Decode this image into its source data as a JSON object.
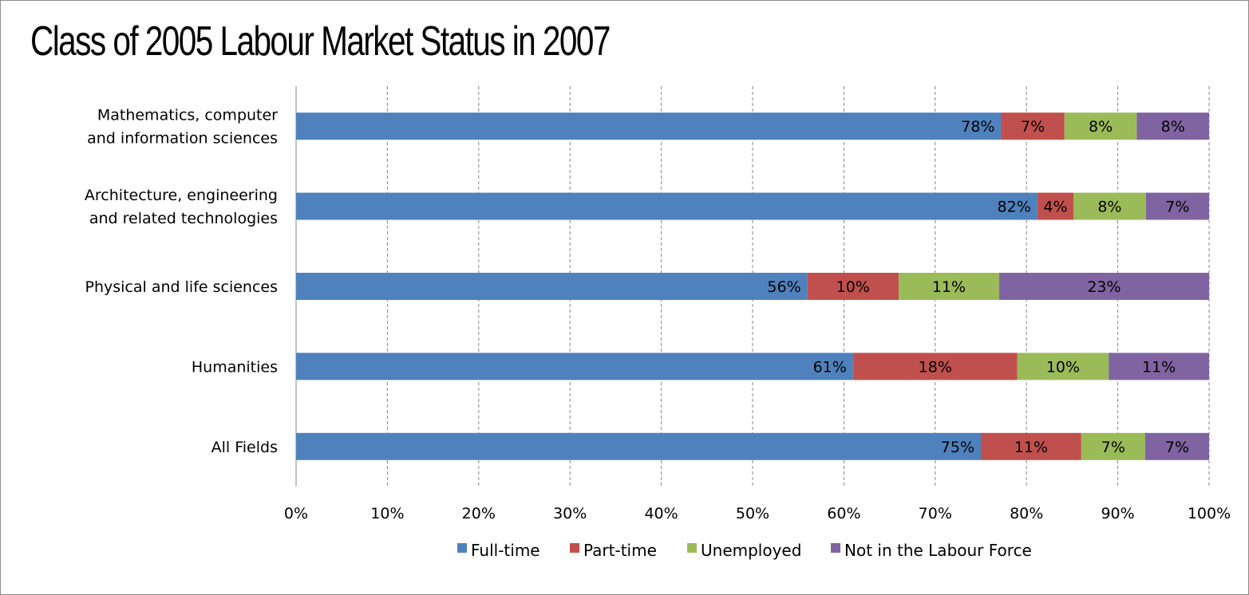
{
  "chart_data": {
    "type": "bar",
    "orientation": "horizontal",
    "stacked": "percent",
    "title": "Class of 2005 Labour Market Status in 2007",
    "categories": [
      [
        "Mathematics, computer",
        "and information sciences"
      ],
      [
        "Architecture, engineering",
        "and related technologies"
      ],
      [
        "Physical and life sciences"
      ],
      [
        "Humanities"
      ],
      [
        "All Fields"
      ]
    ],
    "series": [
      {
        "name": "Full-time",
        "color": "#4f81bd",
        "values": [
          78,
          82,
          56,
          61,
          75
        ],
        "labels": [
          "78%",
          "82%",
          "56%",
          "61%",
          "75%"
        ]
      },
      {
        "name": "Part-time",
        "color": "#c0504d",
        "values": [
          7,
          4,
          10,
          18,
          11
        ],
        "labels": [
          "7%",
          "4%",
          "10%",
          "18%",
          "11%"
        ]
      },
      {
        "name": "Unemployed",
        "color": "#9bbb59",
        "values": [
          8,
          8,
          11,
          10,
          7
        ],
        "labels": [
          "8%",
          "8%",
          "11%",
          "10%",
          "7%"
        ]
      },
      {
        "name": "Not in the Labour Force",
        "color": "#8064a2",
        "values": [
          8,
          7,
          23,
          11,
          7
        ],
        "labels": [
          "8%",
          "7%",
          "23%",
          "11%",
          "7%"
        ]
      }
    ],
    "xlim": [
      0,
      100
    ],
    "xticks": [
      "0%",
      "10%",
      "20%",
      "30%",
      "40%",
      "50%",
      "60%",
      "70%",
      "80%",
      "90%",
      "100%"
    ],
    "grid": "vertical dashed",
    "legend": "bottom"
  }
}
